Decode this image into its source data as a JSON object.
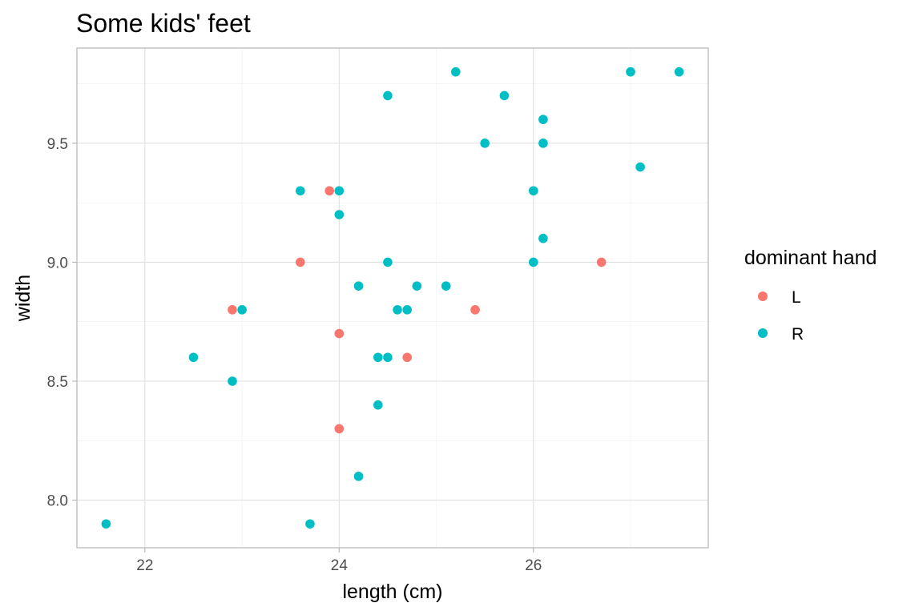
{
  "chart_data": {
    "type": "scatter",
    "title": "Some kids' feet",
    "xlabel": "length (cm)",
    "ylabel": "width",
    "xlim": [
      21.3,
      27.8
    ],
    "ylim": [
      7.8,
      9.9
    ],
    "x_ticks": [
      22,
      24,
      26
    ],
    "x_tick_labels": [
      "22",
      "24",
      "26"
    ],
    "x_minor_ticks": [
      23,
      25,
      27
    ],
    "y_ticks": [
      8.0,
      8.5,
      9.0,
      9.5
    ],
    "y_tick_labels": [
      "8.0",
      "8.5",
      "9.0",
      "9.5"
    ],
    "y_minor_ticks": [
      8.25,
      8.75,
      9.25,
      9.75
    ],
    "grid": true,
    "legend": {
      "title": "dominant hand",
      "position": "right",
      "entries": [
        {
          "label": "L",
          "color": "#F8766D"
        },
        {
          "label": "R",
          "color": "#00BFC4"
        }
      ]
    },
    "series": [
      {
        "name": "L",
        "color": "#F8766D",
        "points": [
          {
            "x": 23.9,
            "y": 9.3
          },
          {
            "x": 23.6,
            "y": 9.0
          },
          {
            "x": 22.9,
            "y": 8.8
          },
          {
            "x": 24.0,
            "y": 8.7
          },
          {
            "x": 24.7,
            "y": 8.6
          },
          {
            "x": 25.4,
            "y": 8.8
          },
          {
            "x": 24.0,
            "y": 8.3
          },
          {
            "x": 26.7,
            "y": 9.0
          }
        ]
      },
      {
        "name": "R",
        "color": "#00BFC4",
        "points": [
          {
            "x": 25.2,
            "y": 9.8
          },
          {
            "x": 27.0,
            "y": 9.8
          },
          {
            "x": 27.5,
            "y": 9.8
          },
          {
            "x": 24.5,
            "y": 9.7
          },
          {
            "x": 25.7,
            "y": 9.7
          },
          {
            "x": 26.1,
            "y": 9.6
          },
          {
            "x": 25.5,
            "y": 9.5
          },
          {
            "x": 26.1,
            "y": 9.5
          },
          {
            "x": 27.1,
            "y": 9.4
          },
          {
            "x": 23.6,
            "y": 9.3
          },
          {
            "x": 24.0,
            "y": 9.3
          },
          {
            "x": 26.0,
            "y": 9.3
          },
          {
            "x": 24.0,
            "y": 9.2
          },
          {
            "x": 26.1,
            "y": 9.1
          },
          {
            "x": 24.5,
            "y": 9.0
          },
          {
            "x": 26.0,
            "y": 9.0
          },
          {
            "x": 24.2,
            "y": 8.9
          },
          {
            "x": 24.8,
            "y": 8.9
          },
          {
            "x": 25.1,
            "y": 8.9
          },
          {
            "x": 23.0,
            "y": 8.8
          },
          {
            "x": 24.6,
            "y": 8.8
          },
          {
            "x": 24.7,
            "y": 8.8
          },
          {
            "x": 22.5,
            "y": 8.6
          },
          {
            "x": 24.4,
            "y": 8.6
          },
          {
            "x": 24.5,
            "y": 8.6
          },
          {
            "x": 22.9,
            "y": 8.5
          },
          {
            "x": 24.4,
            "y": 8.4
          },
          {
            "x": 24.2,
            "y": 8.1
          },
          {
            "x": 21.6,
            "y": 7.9
          },
          {
            "x": 23.7,
            "y": 7.9
          }
        ]
      }
    ]
  }
}
